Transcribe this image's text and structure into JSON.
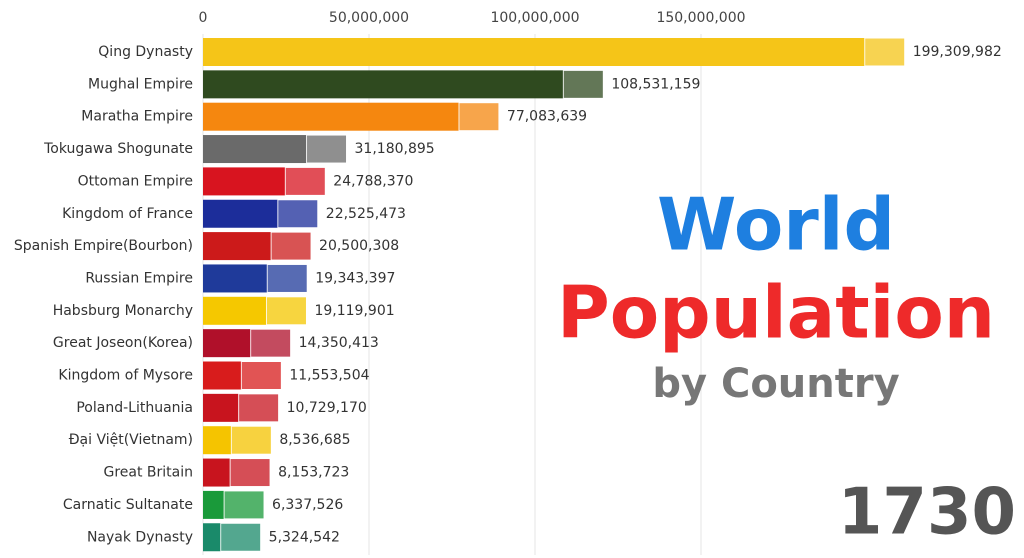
{
  "chart_data": {
    "type": "barh",
    "title": [
      "World",
      "Population",
      "by Country"
    ],
    "year": "1730",
    "categories": [
      "Qing Dynasty",
      "Mughal Empire",
      "Maratha Empire",
      "Tokugawa Shogunate",
      "Ottoman Empire",
      "Kingdom of France",
      "Spanish Empire(Bourbon)",
      "Russian Empire",
      "Habsburg Monarchy",
      "Great Joseon(Korea)",
      "Kingdom of Mysore",
      "Poland-Lithuania",
      "Đại Việt(Vietnam)",
      "Great Britain",
      "Carnatic Sultanate",
      "Nayak Dynasty"
    ],
    "values": [
      199309982,
      108531159,
      77083639,
      31180895,
      24788370,
      22525473,
      20500308,
      19343397,
      19119901,
      14350413,
      11553504,
      10729170,
      8536685,
      8153723,
      6337526,
      5324542
    ],
    "value_labels": [
      "199,309,982",
      "108,531,159",
      "77,083,639",
      "31,180,895",
      "24,788,370",
      "22,525,473",
      "20,500,308",
      "19,343,397",
      "19,119,901",
      "14,350,413",
      "11,553,504",
      "10,729,170",
      "8,536,685",
      "8,153,723",
      "6,337,526",
      "5,324,542"
    ],
    "colors": [
      "#f5c518",
      "#2f4a1f",
      "#f5870f",
      "#6a6a6a",
      "#d8141f",
      "#1c2d9a",
      "#cc1a1a",
      "#1f3a9a",
      "#f5c800",
      "#b0102a",
      "#d81c1c",
      "#c8141e",
      "#f5c400",
      "#c8141e",
      "#1a9a3a",
      "#1a8a6a"
    ],
    "xlim": [
      0,
      200000000
    ],
    "xticks": [
      0,
      {
        "value": 50000000,
        "label": "50,000,000"
      },
      {
        "value": 100000000,
        "label": "100,000,000"
      },
      {
        "value": 150000000,
        "label": "150,000,000"
      }
    ],
    "grid": true
  }
}
